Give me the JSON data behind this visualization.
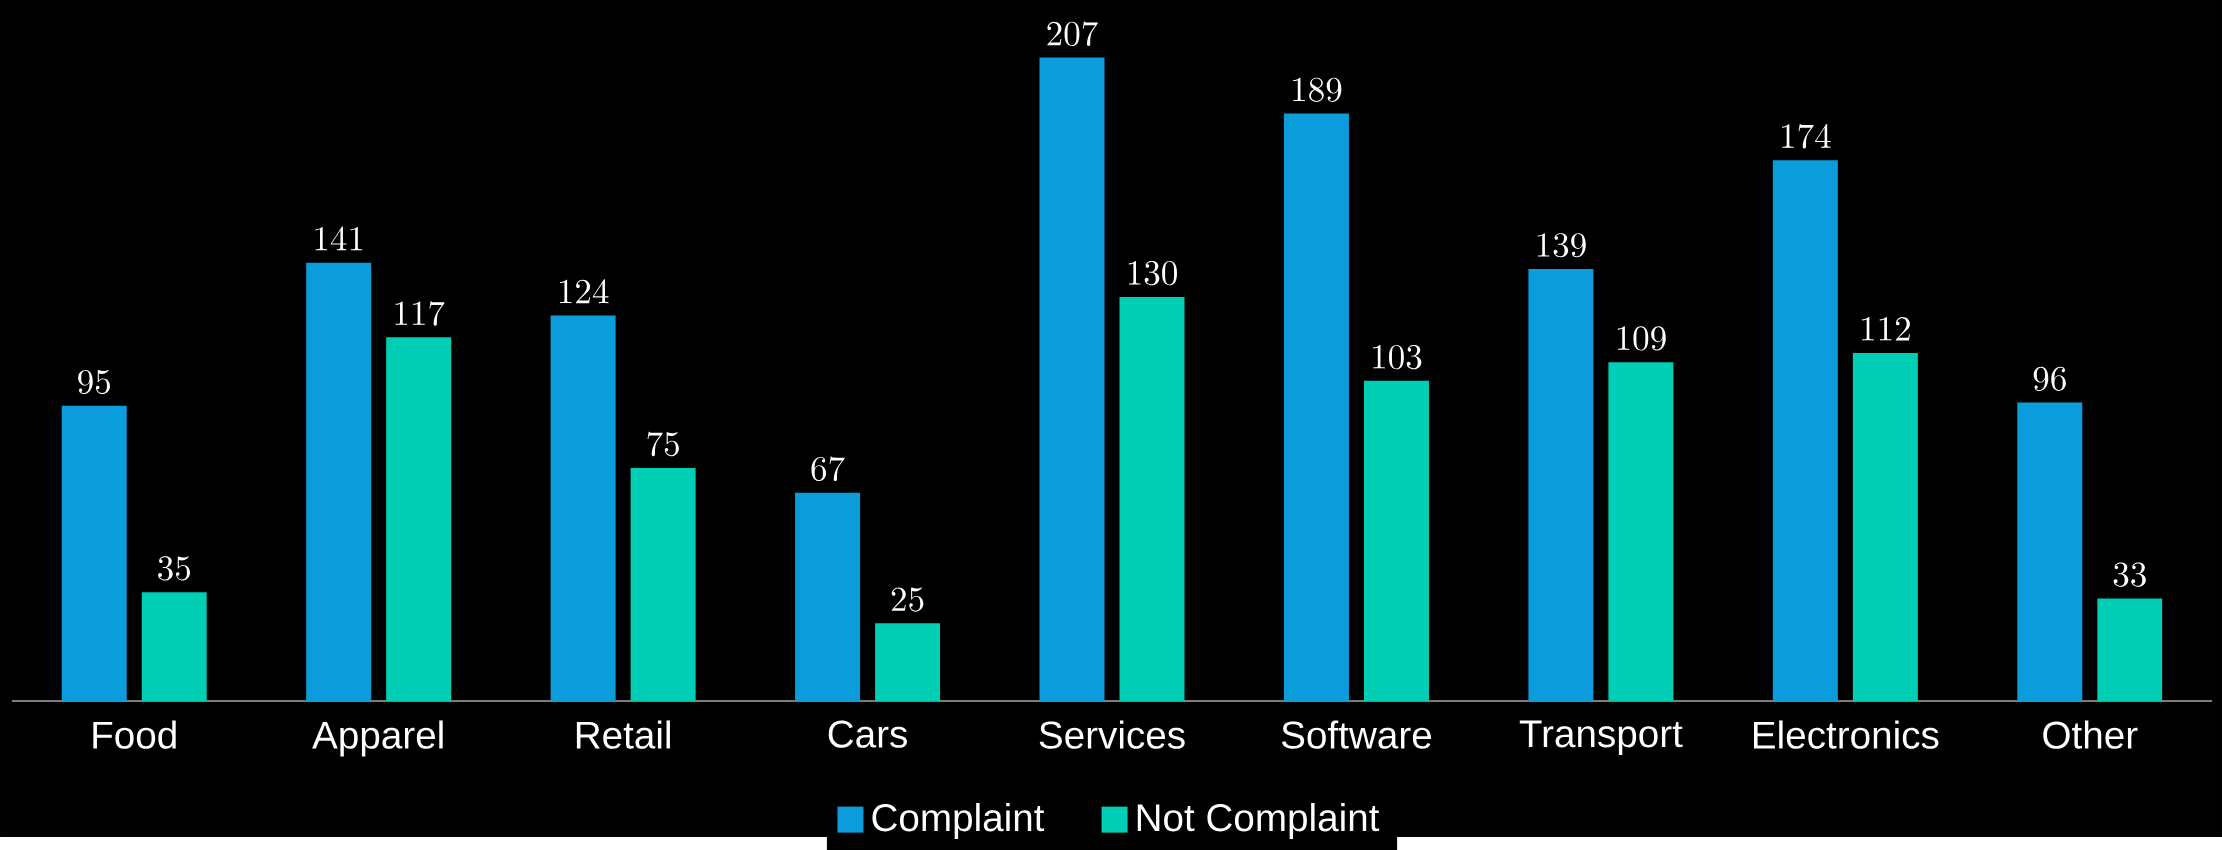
{
  "chart_data": {
    "type": "bar",
    "categories": [
      "Food",
      "Apparel",
      "Retail",
      "Cars",
      "Services",
      "Software",
      "Transport",
      "Electronics",
      "Other"
    ],
    "series": [
      {
        "name": "Complaint",
        "color": "#0b9ddb",
        "values": [
          95,
          141,
          124,
          67,
          207,
          189,
          139,
          174,
          96
        ]
      },
      {
        "name": "Not Complaint",
        "color": "#00cfb5",
        "values": [
          35,
          117,
          75,
          25,
          130,
          103,
          109,
          112,
          33
        ]
      }
    ],
    "data_labels": true,
    "legend": "bottom",
    "grid": false
  }
}
